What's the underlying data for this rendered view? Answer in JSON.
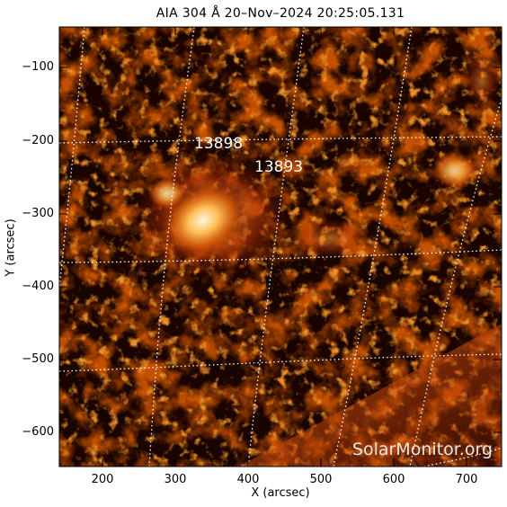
{
  "title": "AIA 304 Å 20–Nov–2024 20:25:05.131",
  "x_axis": {
    "label": "X (arcsec)",
    "ticks": [
      "200",
      "300",
      "400",
      "500",
      "600",
      "700"
    ]
  },
  "y_axis": {
    "label": "Y (arcsec)",
    "ticks": [
      "−100",
      "−200",
      "−300",
      "−400",
      "−500",
      "−600"
    ]
  },
  "active_regions": [
    {
      "number": "13898"
    },
    {
      "number": "13893"
    }
  ],
  "watermark": "SolarMonitor.org",
  "colors": {
    "background": "#1a0400",
    "plasma_dark": "#5a0f00",
    "plasma_mid": "#b83a05",
    "plasma_bright": "#ffae40",
    "plasma_core": "#fff6dc",
    "grid": "#ffffff"
  }
}
